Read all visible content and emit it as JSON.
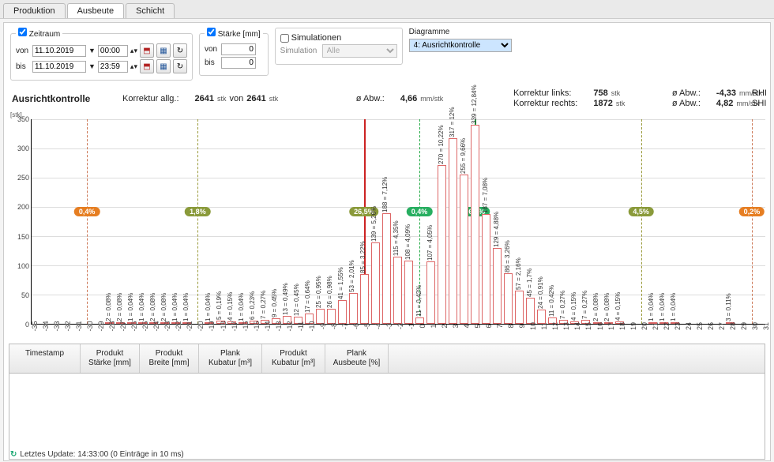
{
  "tabs": {
    "items": [
      "Produktion",
      "Ausbeute",
      "Schicht"
    ],
    "active": 1
  },
  "zeitraum": {
    "legend": "Zeitraum",
    "checked": true,
    "von_label": "von",
    "bis_label": "bis",
    "von_date": "11.10.2019",
    "von_time": "00:00",
    "bis_date": "11.10.2019",
    "bis_time": "23:59"
  },
  "staerke": {
    "legend": "Stärke [mm]",
    "checked": true,
    "von_label": "von",
    "bis_label": "bis",
    "von_val": "0",
    "bis_val": "0"
  },
  "sim": {
    "check_label": "Simulationen",
    "checked": false,
    "label": "Simulation",
    "value": "Alle"
  },
  "diag": {
    "label": "Diagramme",
    "value": "4: Ausrichtkontrolle"
  },
  "summary": {
    "title": "Ausrichtkontrolle",
    "korr_allg_lbl": "Korrektur allg.:",
    "korr_allg_v": "2641",
    "von": "von",
    "korr_allg_v2": "2641",
    "unit_stk": "stk",
    "abw_lbl": "ø Abw.:",
    "abw_v": "4,66",
    "unit_mm": "mm/stk",
    "korr_l_lbl": "Korrektur links:",
    "korr_l_v": "758",
    "korr_r_lbl": "Korrektur rechts:",
    "korr_r_v": "1872",
    "abw_l": "-4,33",
    "abw_r": "4,82",
    "rh": "RHI",
    "sh": "SHI"
  },
  "chart": {
    "y_unit": "[stk]",
    "y_max": 350,
    "y_ticks": [
      0,
      50,
      100,
      150,
      200,
      250,
      300,
      350
    ],
    "x_min": -35,
    "x_max": 32,
    "bars": [
      {
        "x": -28,
        "v": 2,
        "lbl": "2 = 0,08%"
      },
      {
        "x": -27,
        "v": 2,
        "lbl": "2 = 0,08%"
      },
      {
        "x": -26,
        "v": 1,
        "lbl": "1 = 0,04%"
      },
      {
        "x": -25,
        "v": 1,
        "lbl": "1 = 0,04%"
      },
      {
        "x": -24,
        "v": 2,
        "lbl": "2 = 0,08%"
      },
      {
        "x": -23,
        "v": 2,
        "lbl": "2 = 0,08%"
      },
      {
        "x": -22,
        "v": 1,
        "lbl": "1 = 0,04%"
      },
      {
        "x": -21,
        "v": 1,
        "lbl": "1 = 0,04%"
      },
      {
        "x": -19,
        "v": 1,
        "lbl": "1 = 0,04%"
      },
      {
        "x": -18,
        "v": 5,
        "lbl": "5 = 0,19%"
      },
      {
        "x": -17,
        "v": 4,
        "lbl": "4 = 0,15%"
      },
      {
        "x": -16,
        "v": 1,
        "lbl": "1 = 0,04%"
      },
      {
        "x": -15,
        "v": 6,
        "lbl": "6 = 0,23%"
      },
      {
        "x": -14,
        "v": 7,
        "lbl": "7 = 0,27%"
      },
      {
        "x": -13,
        "v": 9,
        "lbl": "9 = 0,45%"
      },
      {
        "x": -12,
        "v": 13,
        "lbl": "13 = 0,49%"
      },
      {
        "x": -11,
        "v": 12,
        "lbl": "12 = 0,45%"
      },
      {
        "x": -10,
        "v": 17,
        "lbl": "17 = 0,64%"
      },
      {
        "x": -9,
        "v": 25,
        "lbl": "25 = 0,95%"
      },
      {
        "x": -8,
        "v": 26,
        "lbl": "26 = 0,98%"
      },
      {
        "x": -7,
        "v": 41,
        "lbl": "41 = 1,55%"
      },
      {
        "x": -6,
        "v": 53,
        "lbl": "53 = 2,01%"
      },
      {
        "x": -5,
        "v": 85,
        "lbl": "85 = 3,22%"
      },
      {
        "x": -4,
        "v": 139,
        "lbl": "139 = 5,26%"
      },
      {
        "x": -3,
        "v": 188,
        "lbl": "188 = 7,12%"
      },
      {
        "x": -2,
        "v": 115,
        "lbl": "115 = 4,35%"
      },
      {
        "x": -1,
        "v": 108,
        "lbl": "108 = 4,09%"
      },
      {
        "x": 0,
        "v": 11,
        "lbl": "11 = 0,42%"
      },
      {
        "x": 1,
        "v": 107,
        "lbl": "107 = 4,05%"
      },
      {
        "x": 2,
        "v": 270,
        "lbl": "270 = 10,22%"
      },
      {
        "x": 3,
        "v": 317,
        "lbl": "317 = 12%"
      },
      {
        "x": 4,
        "v": 255,
        "lbl": "255 = 9,66%"
      },
      {
        "x": 5,
        "v": 339,
        "lbl": "339 = 12,84%"
      },
      {
        "x": 6,
        "v": 187,
        "lbl": "187 = 7,08%"
      },
      {
        "x": 7,
        "v": 129,
        "lbl": "129 = 4,88%"
      },
      {
        "x": 8,
        "v": 86,
        "lbl": "86 = 3,26%"
      },
      {
        "x": 9,
        "v": 57,
        "lbl": "57 = 2,16%"
      },
      {
        "x": 10,
        "v": 45,
        "lbl": "45 = 1,7%"
      },
      {
        "x": 11,
        "v": 24,
        "lbl": "24 = 0,91%"
      },
      {
        "x": 12,
        "v": 11,
        "lbl": "11 = 0,42%"
      },
      {
        "x": 13,
        "v": 7,
        "lbl": "7 = 0,27%"
      },
      {
        "x": 14,
        "v": 4,
        "lbl": "4 = 0,15%"
      },
      {
        "x": 15,
        "v": 7,
        "lbl": "7 = 0,27%"
      },
      {
        "x": 16,
        "v": 2,
        "lbl": "2 = 0,08%"
      },
      {
        "x": 17,
        "v": 2,
        "lbl": "2 = 0,08%"
      },
      {
        "x": 18,
        "v": 4,
        "lbl": "4 = 0,15%"
      },
      {
        "x": 21,
        "v": 1,
        "lbl": "1 = 0,04%"
      },
      {
        "x": 22,
        "v": 1,
        "lbl": "1 = 0,04%"
      },
      {
        "x": 23,
        "v": 1,
        "lbl": "1 = 0,04%"
      },
      {
        "x": 28,
        "v": 3,
        "lbl": "3 = 0,11%"
      }
    ],
    "vlines": [
      {
        "x": -30,
        "style": "dash",
        "color": "#cc7755"
      },
      {
        "x": -20,
        "style": "dash",
        "color": "#9a9a3a"
      },
      {
        "x": -5,
        "style": "solid",
        "color": "#cc2222"
      },
      {
        "x": 0,
        "style": "dash",
        "color": "#22aa44"
      },
      {
        "x": 5,
        "style": "solid",
        "color": "#22aa44"
      },
      {
        "x": 20,
        "style": "dash",
        "color": "#9a9a3a"
      },
      {
        "x": 30,
        "style": "dash",
        "color": "#cc7755"
      }
    ],
    "badges": [
      {
        "x": -30,
        "text": "0,4%",
        "cls": "orange"
      },
      {
        "x": -20,
        "text": "1,8%",
        "cls": "olive"
      },
      {
        "x": -5,
        "text": "26,5%",
        "cls": "olive"
      },
      {
        "x": 0,
        "text": "0,4%",
        "cls": "green"
      },
      {
        "x": 5,
        "text": "66,2%",
        "cls": "green"
      },
      {
        "x": 20,
        "text": "4,5%",
        "cls": "olive"
      },
      {
        "x": 30,
        "text": "0,2%",
        "cls": "orange"
      }
    ]
  },
  "table": {
    "cols": [
      {
        "label": "Timestamp",
        "w": 90
      },
      {
        "label": "Produkt\nStärke [mm]",
        "w": 75
      },
      {
        "label": "Produkt\nBreite [mm]",
        "w": 75
      },
      {
        "label": "Plank\nKubatur [m³]",
        "w": 80
      },
      {
        "label": "Produkt\nKubatur [m³]",
        "w": 80
      },
      {
        "label": "Plank\nAusbeute [%]",
        "w": 80
      }
    ]
  },
  "status": "Letztes Update: 14:33:00 (0 Einträge in 10 ms)"
}
